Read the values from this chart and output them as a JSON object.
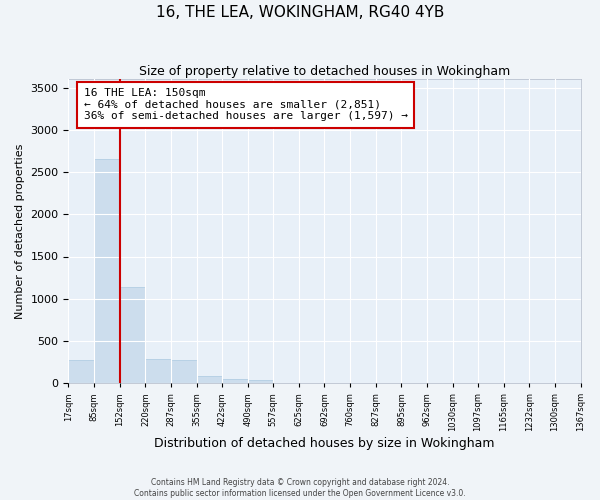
{
  "title": "16, THE LEA, WOKINGHAM, RG40 4YB",
  "subtitle": "Size of property relative to detached houses in Wokingham",
  "xlabel": "Distribution of detached houses by size in Wokingham",
  "ylabel": "Number of detached properties",
  "bar_color": "#ccdded",
  "bar_edge_color": "#aac8e0",
  "background_color": "#e8f0f8",
  "grid_color": "#ffffff",
  "property_line_x": 152,
  "annotation_text1": "16 THE LEA: 150sqm",
  "annotation_text2": "← 64% of detached houses are smaller (2,851)",
  "annotation_text3": "36% of semi-detached houses are larger (1,597) →",
  "annotation_box_color": "#ffffff",
  "annotation_box_edge": "#cc0000",
  "property_line_color": "#cc0000",
  "bin_edges": [
    17,
    85,
    152,
    220,
    287,
    355,
    422,
    490,
    557,
    625,
    692,
    760,
    827,
    895,
    962,
    1030,
    1097,
    1165,
    1232,
    1300,
    1367
  ],
  "bar_heights": [
    270,
    2650,
    1140,
    285,
    280,
    90,
    55,
    35,
    0,
    0,
    0,
    0,
    0,
    0,
    0,
    0,
    0,
    0,
    0,
    0
  ],
  "tick_labels": [
    "17sqm",
    "85sqm",
    "152sqm",
    "220sqm",
    "287sqm",
    "355sqm",
    "422sqm",
    "490sqm",
    "557sqm",
    "625sqm",
    "692sqm",
    "760sqm",
    "827sqm",
    "895sqm",
    "962sqm",
    "1030sqm",
    "1097sqm",
    "1165sqm",
    "1232sqm",
    "1300sqm",
    "1367sqm"
  ],
  "ylim": [
    0,
    3600
  ],
  "yticks": [
    0,
    500,
    1000,
    1500,
    2000,
    2500,
    3000,
    3500
  ],
  "footer1": "Contains HM Land Registry data © Crown copyright and database right 2024.",
  "footer2": "Contains public sector information licensed under the Open Government Licence v3.0."
}
